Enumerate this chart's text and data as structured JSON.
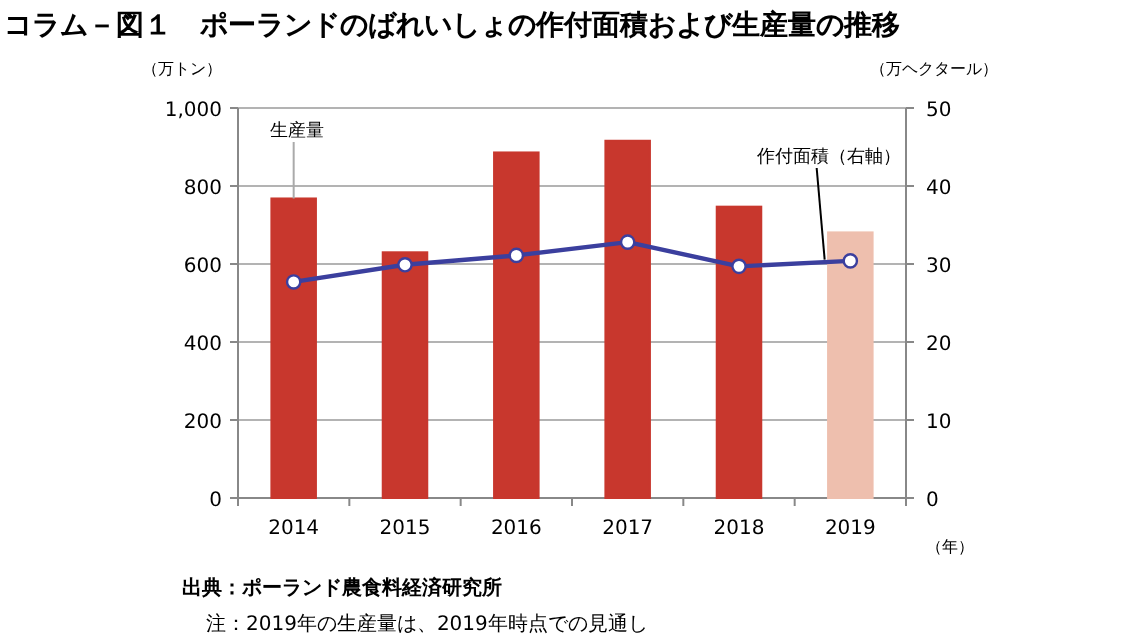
{
  "chart_data": {
    "type": "bar",
    "title": "コラム－図１　ポーランドのばれいしょの作付面積および生産量の推移",
    "ylabel": "（万トン）",
    "y2label": "（万ヘクタール）",
    "xlabel": "（年）",
    "categories": [
      "2014",
      "2015",
      "2016",
      "2017",
      "2018",
      "2019"
    ],
    "series": [
      {
        "name": "生産量",
        "colors": [
          "#c8372d",
          "#c8372d",
          "#c8372d",
          "#c8372d",
          "#c8372d",
          "#eebfae"
        ],
        "values": [
          768,
          630,
          886,
          916,
          747,
          681
        ]
      },
      {
        "name": "作付面積（右軸）",
        "type": "line",
        "axis": "y2",
        "color": "#3b3f9e",
        "marker": "circle",
        "values": [
          27.7,
          29.9,
          31.1,
          32.8,
          29.7,
          30.4
        ]
      }
    ],
    "ylim": [
      0,
      1000
    ],
    "yticks": [
      {
        "value": 0,
        "label": "0"
      },
      {
        "value": 200,
        "label": "200"
      },
      {
        "value": 400,
        "label": "400"
      },
      {
        "value": 600,
        "label": "600"
      },
      {
        "value": 800,
        "label": "800"
      },
      {
        "value": 1000,
        "label": "1,000"
      }
    ],
    "y2lim": [
      0,
      50
    ],
    "y2ticks": [
      0,
      10,
      20,
      30,
      40,
      50
    ],
    "grid": "y",
    "annotations": [
      "出典：ポーランド農食料経済研究所",
      "注：2019年の生産量は、2019年時点での見通し"
    ]
  }
}
